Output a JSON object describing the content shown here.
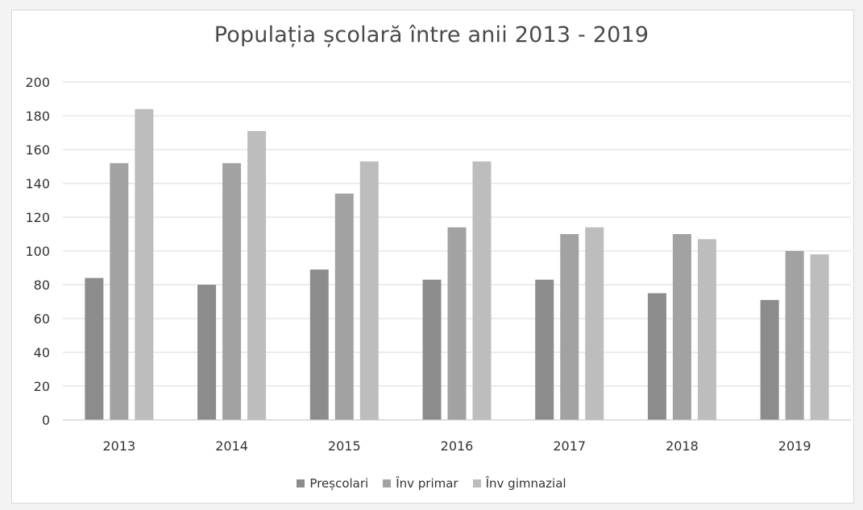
{
  "chart_data": {
    "type": "bar",
    "title": "Populația școlară între anii 2013 - 2019",
    "categories": [
      "2013",
      "2014",
      "2015",
      "2016",
      "2017",
      "2018",
      "2019"
    ],
    "series": [
      {
        "name": "Preșcolari",
        "values": [
          84,
          80,
          89,
          83,
          83,
          75,
          71
        ],
        "color": "#8c8c8c"
      },
      {
        "name": "Înv primar",
        "values": [
          152,
          152,
          134,
          114,
          110,
          110,
          100
        ],
        "color": "#a2a2a2"
      },
      {
        "name": "Înv gimnazial",
        "values": [
          184,
          171,
          153,
          153,
          114,
          107,
          98
        ],
        "color": "#bdbdbd"
      }
    ],
    "ylim": [
      0,
      200
    ],
    "yticks": [
      "0",
      "20",
      "40",
      "60",
      "80",
      "100",
      "120",
      "140",
      "160",
      "180",
      "200"
    ],
    "grid": true,
    "legend_position": "bottom"
  }
}
